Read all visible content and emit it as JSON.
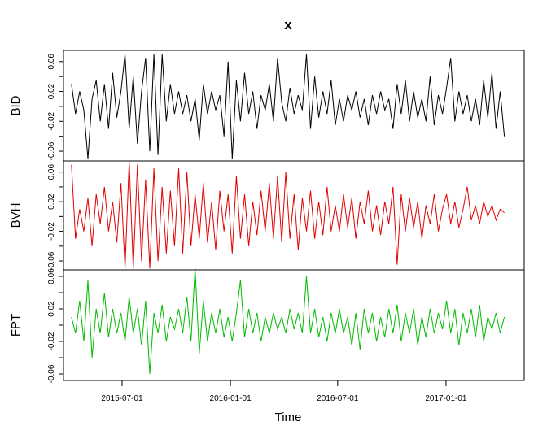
{
  "chart_data": {
    "type": "line",
    "title": "x",
    "xlabel": "Time",
    "x_start": "2015-04-06",
    "x_step_days": 7,
    "x_ticks": [
      "2015-07-01",
      "2016-01-01",
      "2016-07-01",
      "2017-01-01"
    ],
    "y_ticks": [
      "0.06",
      "0.02",
      "-0.02",
      "-0.06"
    ],
    "series": [
      {
        "name": "BID",
        "color": "#000000",
        "ylim": [
          -0.073,
          0.075
        ],
        "values": [
          0.03,
          -0.01,
          0.02,
          -0.005,
          -0.07,
          0.01,
          0.035,
          -0.02,
          0.03,
          -0.03,
          0.045,
          -0.015,
          0.02,
          0.07,
          -0.03,
          0.04,
          -0.05,
          0.02,
          0.065,
          -0.06,
          0.07,
          -0.065,
          0.07,
          -0.02,
          0.03,
          -0.01,
          0.02,
          -0.01,
          0.015,
          -0.02,
          0.01,
          -0.045,
          0.03,
          -0.01,
          0.02,
          -0.005,
          0.015,
          -0.04,
          0.06,
          -0.07,
          0.035,
          -0.02,
          0.045,
          -0.01,
          0.02,
          -0.03,
          0.015,
          -0.005,
          0.03,
          -0.02,
          0.065,
          0.005,
          -0.02,
          0.025,
          -0.01,
          0.015,
          -0.005,
          0.07,
          -0.03,
          0.04,
          -0.015,
          0.02,
          -0.01,
          0.035,
          -0.025,
          0.01,
          -0.02,
          0.015,
          -0.005,
          0.02,
          -0.015,
          0.01,
          -0.025,
          0.015,
          -0.01,
          0.02,
          -0.005,
          0.01,
          -0.03,
          0.03,
          -0.01,
          0.035,
          -0.02,
          0.02,
          -0.015,
          0.01,
          -0.02,
          0.04,
          -0.025,
          0.015,
          -0.01,
          0.025,
          0.065,
          -0.02,
          0.02,
          -0.01,
          0.015,
          -0.02,
          0.01,
          -0.025,
          0.035,
          -0.015,
          0.045,
          -0.03,
          0.02,
          -0.04
        ]
      },
      {
        "name": "BVH",
        "color": "#e00000",
        "ylim": [
          -0.072,
          0.075
        ],
        "values": [
          0.07,
          -0.03,
          0.01,
          -0.02,
          0.025,
          -0.04,
          0.03,
          -0.01,
          0.04,
          -0.02,
          0.02,
          -0.035,
          0.045,
          -0.07,
          0.075,
          -0.07,
          0.07,
          -0.06,
          0.05,
          -0.07,
          0.065,
          -0.06,
          0.04,
          -0.05,
          0.035,
          -0.04,
          0.065,
          -0.05,
          0.06,
          -0.04,
          0.03,
          -0.03,
          0.045,
          -0.035,
          0.02,
          -0.045,
          0.035,
          -0.02,
          0.03,
          -0.05,
          0.055,
          -0.03,
          0.03,
          -0.04,
          0.02,
          -0.025,
          0.035,
          -0.02,
          0.045,
          -0.03,
          0.055,
          -0.035,
          0.06,
          -0.03,
          0.03,
          -0.045,
          0.025,
          -0.02,
          0.035,
          -0.03,
          0.02,
          -0.025,
          0.04,
          -0.02,
          0.015,
          -0.02,
          0.03,
          -0.015,
          0.025,
          -0.03,
          0.02,
          -0.01,
          0.035,
          -0.02,
          0.015,
          -0.025,
          0.02,
          -0.01,
          0.04,
          -0.065,
          0.03,
          -0.02,
          0.025,
          -0.015,
          0.02,
          -0.03,
          0.015,
          -0.01,
          0.03,
          -0.02,
          0.01,
          0.03,
          -0.01,
          0.02,
          -0.015,
          0.01,
          0.04,
          -0.005,
          0.015,
          -0.01,
          0.02,
          0.0,
          0.015,
          -0.005,
          0.01,
          0.005
        ]
      },
      {
        "name": "FPT",
        "color": "#00bb00",
        "ylim": [
          -0.068,
          0.068
        ],
        "values": [
          0.01,
          -0.01,
          0.03,
          -0.02,
          0.055,
          -0.04,
          0.02,
          -0.01,
          0.04,
          -0.015,
          0.02,
          -0.01,
          0.015,
          -0.02,
          0.035,
          -0.01,
          0.02,
          -0.025,
          0.03,
          -0.06,
          0.015,
          -0.01,
          0.025,
          -0.02,
          0.01,
          -0.005,
          0.02,
          -0.01,
          0.035,
          -0.02,
          0.07,
          -0.035,
          0.03,
          -0.02,
          0.015,
          -0.01,
          0.02,
          -0.015,
          0.01,
          -0.02,
          0.015,
          0.055,
          -0.015,
          0.02,
          -0.01,
          0.015,
          -0.02,
          0.01,
          -0.01,
          0.015,
          -0.005,
          0.01,
          -0.01,
          0.02,
          -0.005,
          0.015,
          -0.01,
          0.06,
          -0.01,
          0.02,
          -0.015,
          0.01,
          -0.02,
          0.015,
          -0.01,
          0.02,
          -0.01,
          0.01,
          -0.025,
          0.015,
          -0.03,
          0.02,
          -0.01,
          0.015,
          -0.02,
          0.01,
          -0.015,
          0.02,
          -0.01,
          0.025,
          -0.02,
          0.015,
          -0.01,
          0.02,
          -0.025,
          0.01,
          -0.015,
          0.02,
          -0.01,
          0.015,
          -0.005,
          0.03,
          -0.01,
          0.02,
          -0.025,
          0.015,
          -0.01,
          0.02,
          -0.015,
          0.025,
          -0.02,
          0.01,
          -0.005,
          0.015,
          -0.01,
          0.01
        ]
      }
    ]
  }
}
